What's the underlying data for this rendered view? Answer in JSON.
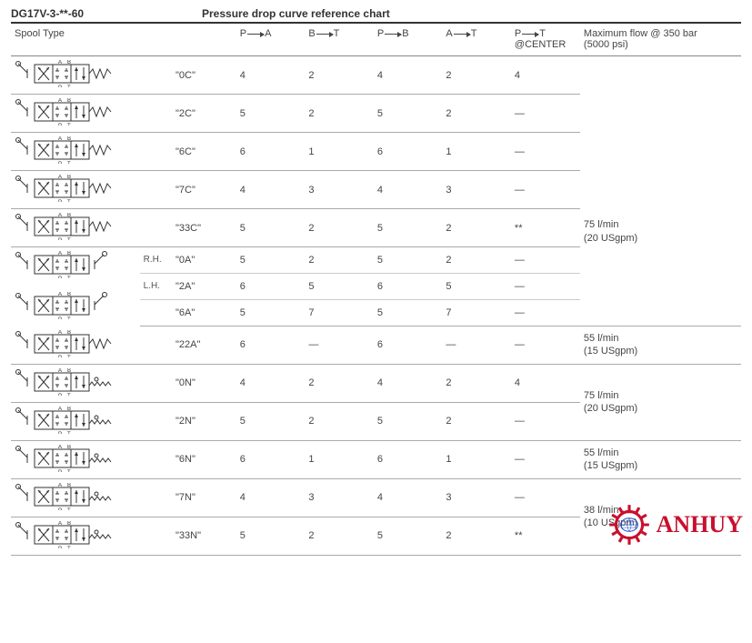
{
  "header": {
    "model": "DG17V-3-**-60",
    "title": "Pressure drop curve reference chart"
  },
  "columns": {
    "spool": "Spool Type",
    "pa_a": "P",
    "pa_b": "A",
    "bt_a": "B",
    "bt_b": "T",
    "pb_a": "P",
    "pb_b": "B",
    "at_a": "A",
    "at_b": "T",
    "pt_a": "P",
    "pt_b": "T",
    "pt_sub": "@CENTER",
    "max_l1": "Maximum flow @ 350 bar",
    "max_l2": "(5000 psi)"
  },
  "rows": [
    {
      "code": "\"0C\"",
      "pa": "4",
      "bt": "2",
      "pb": "4",
      "at": "2",
      "pt": "4"
    },
    {
      "code": "\"2C\"",
      "pa": "5",
      "bt": "2",
      "pb": "5",
      "at": "2",
      "pt": "—"
    },
    {
      "code": "\"6C\"",
      "pa": "6",
      "bt": "1",
      "pb": "6",
      "at": "1",
      "pt": "—"
    },
    {
      "code": "\"7C\"",
      "pa": "4",
      "bt": "3",
      "pb": "4",
      "at": "3",
      "pt": "—"
    },
    {
      "code": "\"33C\"",
      "pa": "5",
      "bt": "2",
      "pb": "5",
      "at": "2",
      "pt": "**"
    },
    {
      "code": "\"0A\"",
      "pa": "5",
      "bt": "2",
      "pb": "5",
      "at": "2",
      "pt": "—",
      "annot": "R.H."
    },
    {
      "code": "\"2A\"",
      "pa": "6",
      "bt": "5",
      "pb": "6",
      "at": "5",
      "pt": "—",
      "annot": "L.H."
    },
    {
      "code": "\"6A\"",
      "pa": "5",
      "bt": "7",
      "pb": "5",
      "at": "7",
      "pt": "—"
    },
    {
      "code": "\"22A\"",
      "pa": "6",
      "bt": "—",
      "pb": "6",
      "at": "—",
      "pt": "—"
    },
    {
      "code": "\"0N\"",
      "pa": "4",
      "bt": "2",
      "pb": "4",
      "at": "2",
      "pt": "4"
    },
    {
      "code": "\"2N\"",
      "pa": "5",
      "bt": "2",
      "pb": "5",
      "at": "2",
      "pt": "—"
    },
    {
      "code": "\"6N\"",
      "pa": "6",
      "bt": "1",
      "pb": "6",
      "at": "1",
      "pt": "—"
    },
    {
      "code": "\"7N\"",
      "pa": "4",
      "bt": "3",
      "pb": "4",
      "at": "3",
      "pt": "—"
    },
    {
      "code": "\"33N\"",
      "pa": "5",
      "bt": "2",
      "pb": "5",
      "at": "2",
      "pt": "**"
    }
  ],
  "maxflow": {
    "g1": {
      "l1": "75 l/min",
      "l2": "(20 USgpm)"
    },
    "g2": {
      "l1": "55 l/min",
      "l2": "(15 USgpm)"
    },
    "g3": {
      "l1": "75 l/min",
      "l2": "(20 USgpm)"
    },
    "g4": {
      "l1": "55 l/min",
      "l2": "(15 USgpm)"
    },
    "g5": {
      "l1": "38 l/min",
      "l2": "(10 USgpm)"
    }
  },
  "labels": {
    "A": "A",
    "B": "B",
    "P": "P",
    "T": "T"
  },
  "colors": {
    "text": "#444444",
    "rule": "#333333",
    "row_rule": "#aaaaaa",
    "logo_red": "#c8102e",
    "logo_blue": "#1d4ed8"
  },
  "logo": {
    "text": "ANHUY",
    "sub": "AN HUY"
  }
}
